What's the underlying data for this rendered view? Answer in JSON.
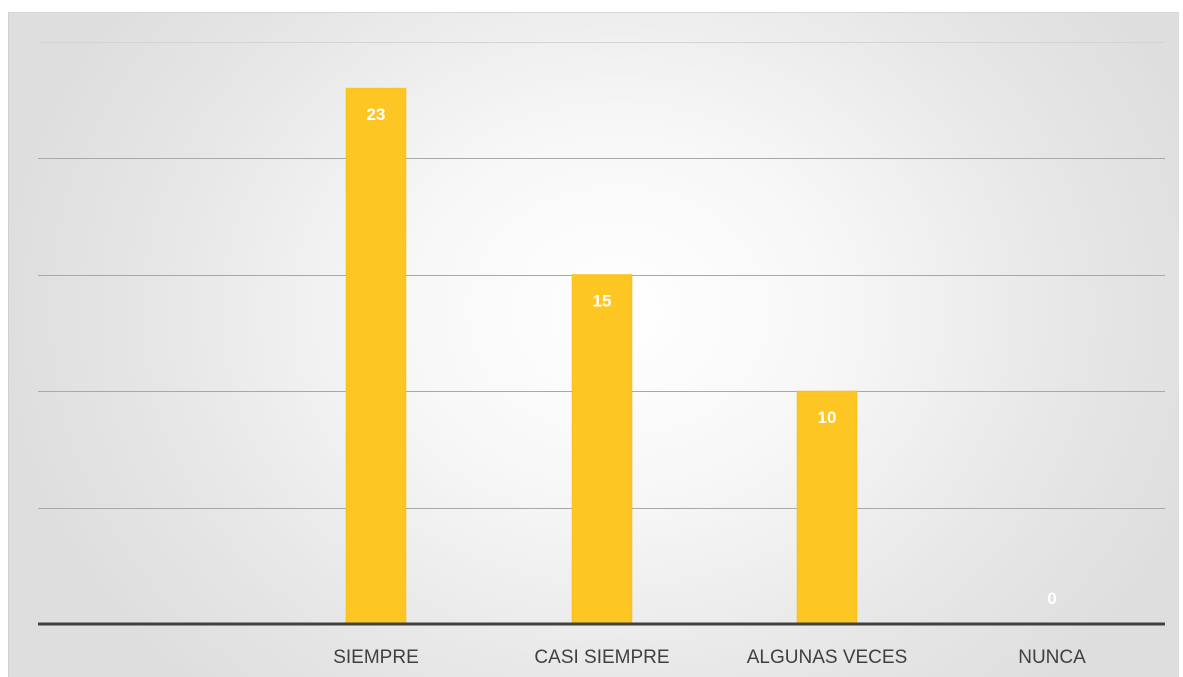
{
  "chart_data": {
    "type": "bar",
    "title": "",
    "xlabel": "",
    "ylabel": "",
    "categories": [
      "SIEMPRE",
      "CASI SIEMPRE",
      "ALGUNAS VECES",
      "NUNCA"
    ],
    "values": [
      23,
      15,
      10,
      0
    ],
    "ylim": [
      0,
      25
    ],
    "grid": true,
    "legend": "none",
    "data_labels": true,
    "colors": {
      "bar": "#FDC623",
      "bar_edge": "#F5B80F",
      "data_label": "#FFFFFF",
      "axis": "#404040",
      "grid": "#A8A8A8",
      "tick_label": "#404040"
    }
  }
}
